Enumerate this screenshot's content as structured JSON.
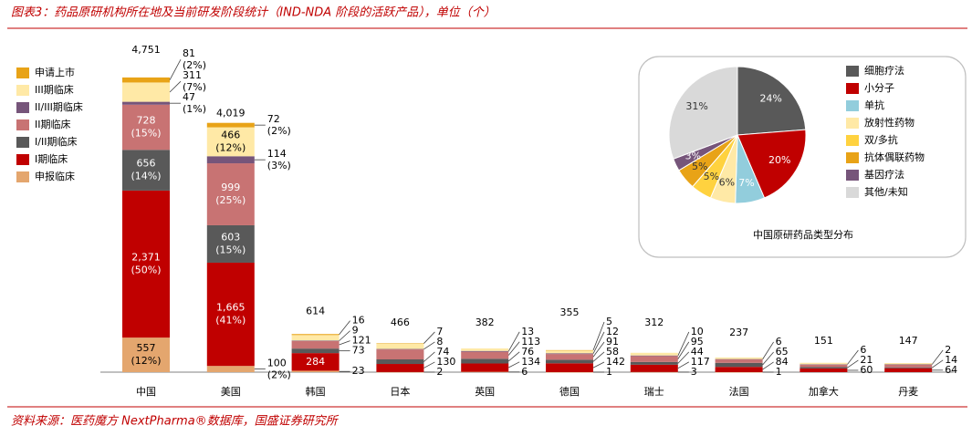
{
  "title": "图表3：药品原研机构所在地及当前研发阶段统计（IND-NDA 阶段的活跃产品），单位（个）",
  "source": "资料来源：医药魔方 NextPharma®数据库，国盛证券研究所",
  "chart_data": [
    {
      "type": "stacked_bar",
      "categories": [
        "中国",
        "美国",
        "韩国",
        "日本",
        "英国",
        "德国",
        "瑞士",
        "法国",
        "加拿大",
        "丹麦"
      ],
      "ylim": [
        0,
        5000
      ],
      "totals": [
        4751,
        4019,
        614,
        466,
        382,
        355,
        312,
        237,
        151,
        147
      ],
      "total_labels": [
        "4,751",
        "4,019",
        "614",
        "466",
        "382",
        "355",
        "312",
        "237",
        "151",
        "147"
      ],
      "series": [
        {
          "name": "申报临床",
          "color": "#E4A66E",
          "values": [
            557,
            100,
            23,
            2,
            6,
            1,
            3,
            1,
            null,
            null
          ],
          "value_labels": [
            "557",
            "100",
            "23",
            "2",
            "6",
            "1",
            "3",
            "1",
            null,
            null
          ],
          "share_labels": [
            "(12%)",
            "(2%)",
            null,
            null,
            null,
            null,
            null,
            null,
            null,
            null
          ]
        },
        {
          "name": "I期临床",
          "color": "#C00000",
          "values": [
            2371,
            1665,
            284,
            130,
            134,
            142,
            117,
            84,
            60,
            64
          ],
          "value_labels": [
            "2,371",
            "1,665",
            "284",
            "130",
            "134",
            "142",
            "117",
            "84",
            "60",
            "64"
          ],
          "share_labels": [
            "(50%)",
            "(41%)",
            null,
            null,
            null,
            null,
            null,
            null,
            null,
            null
          ]
        },
        {
          "name": "I/II期临床",
          "color": "#595959",
          "values": [
            656,
            603,
            73,
            74,
            76,
            58,
            44,
            65,
            21,
            14
          ],
          "value_labels": [
            "656",
            "603",
            "73",
            "74",
            "76",
            "58",
            "44",
            "65",
            "21",
            "14"
          ],
          "share_labels": [
            "(14%)",
            "(15%)",
            null,
            null,
            null,
            null,
            null,
            null,
            null,
            null
          ]
        },
        {
          "name": "II期临床",
          "color": "#C87373",
          "values": [
            728,
            999,
            121,
            160,
            113,
            91,
            95,
            55,
            40,
            45
          ],
          "value_labels": [
            "728",
            "999",
            "121",
            null,
            "113",
            "91",
            "95",
            null,
            null,
            null
          ],
          "share_labels": [
            "(15%)",
            "(25%)",
            null,
            null,
            null,
            null,
            null,
            null,
            null,
            null
          ]
        },
        {
          "name": "II/III期临床",
          "color": "#76557A",
          "values": [
            47,
            114,
            9,
            8,
            13,
            12,
            10,
            6,
            6,
            2
          ],
          "value_labels": [
            "47",
            "114",
            "9",
            "8",
            "13",
            "12",
            "10",
            "6",
            "6",
            "2"
          ],
          "share_labels": [
            "(1%)",
            "(3%)",
            null,
            null,
            null,
            null,
            null,
            null,
            null,
            null
          ]
        },
        {
          "name": "III期临床",
          "color": "#FFE9A6",
          "values": [
            311,
            466,
            88,
            85,
            40,
            46,
            43,
            26,
            24,
            22
          ],
          "value_labels": [
            "311",
            "466",
            null,
            null,
            null,
            null,
            null,
            null,
            null,
            null
          ],
          "share_labels": [
            "(7%)",
            "(12%)",
            null,
            null,
            null,
            null,
            null,
            null,
            null,
            null
          ]
        },
        {
          "name": "申请上市",
          "color": "#E8A317",
          "values": [
            81,
            72,
            16,
            7,
            null,
            5,
            null,
            null,
            null,
            null
          ],
          "value_labels": [
            "81",
            "72",
            "16",
            "7",
            null,
            "5",
            null,
            null,
            null,
            null
          ],
          "share_labels": [
            "(2%)",
            "(2%)",
            null,
            null,
            null,
            null,
            null,
            null,
            null,
            null
          ]
        }
      ]
    },
    {
      "type": "pie",
      "title": "中国原研药品类型分布",
      "categories": [
        "细胞疗法",
        "小分子",
        "单抗",
        "放射性药物",
        "双/多抗",
        "抗体偶联药物",
        "基因疗法",
        "其他/未知"
      ],
      "values": [
        24,
        20,
        7,
        6,
        5,
        5,
        3,
        31
      ],
      "value_labels": [
        "24%",
        "20%",
        "7%",
        "6%",
        "5%",
        "5%",
        "3%",
        "31%"
      ],
      "colors": [
        "#595959",
        "#C00000",
        "#92CDDC",
        "#FFE9A6",
        "#FFD23F",
        "#E8A317",
        "#76557A",
        "#D9D9D9"
      ]
    }
  ]
}
